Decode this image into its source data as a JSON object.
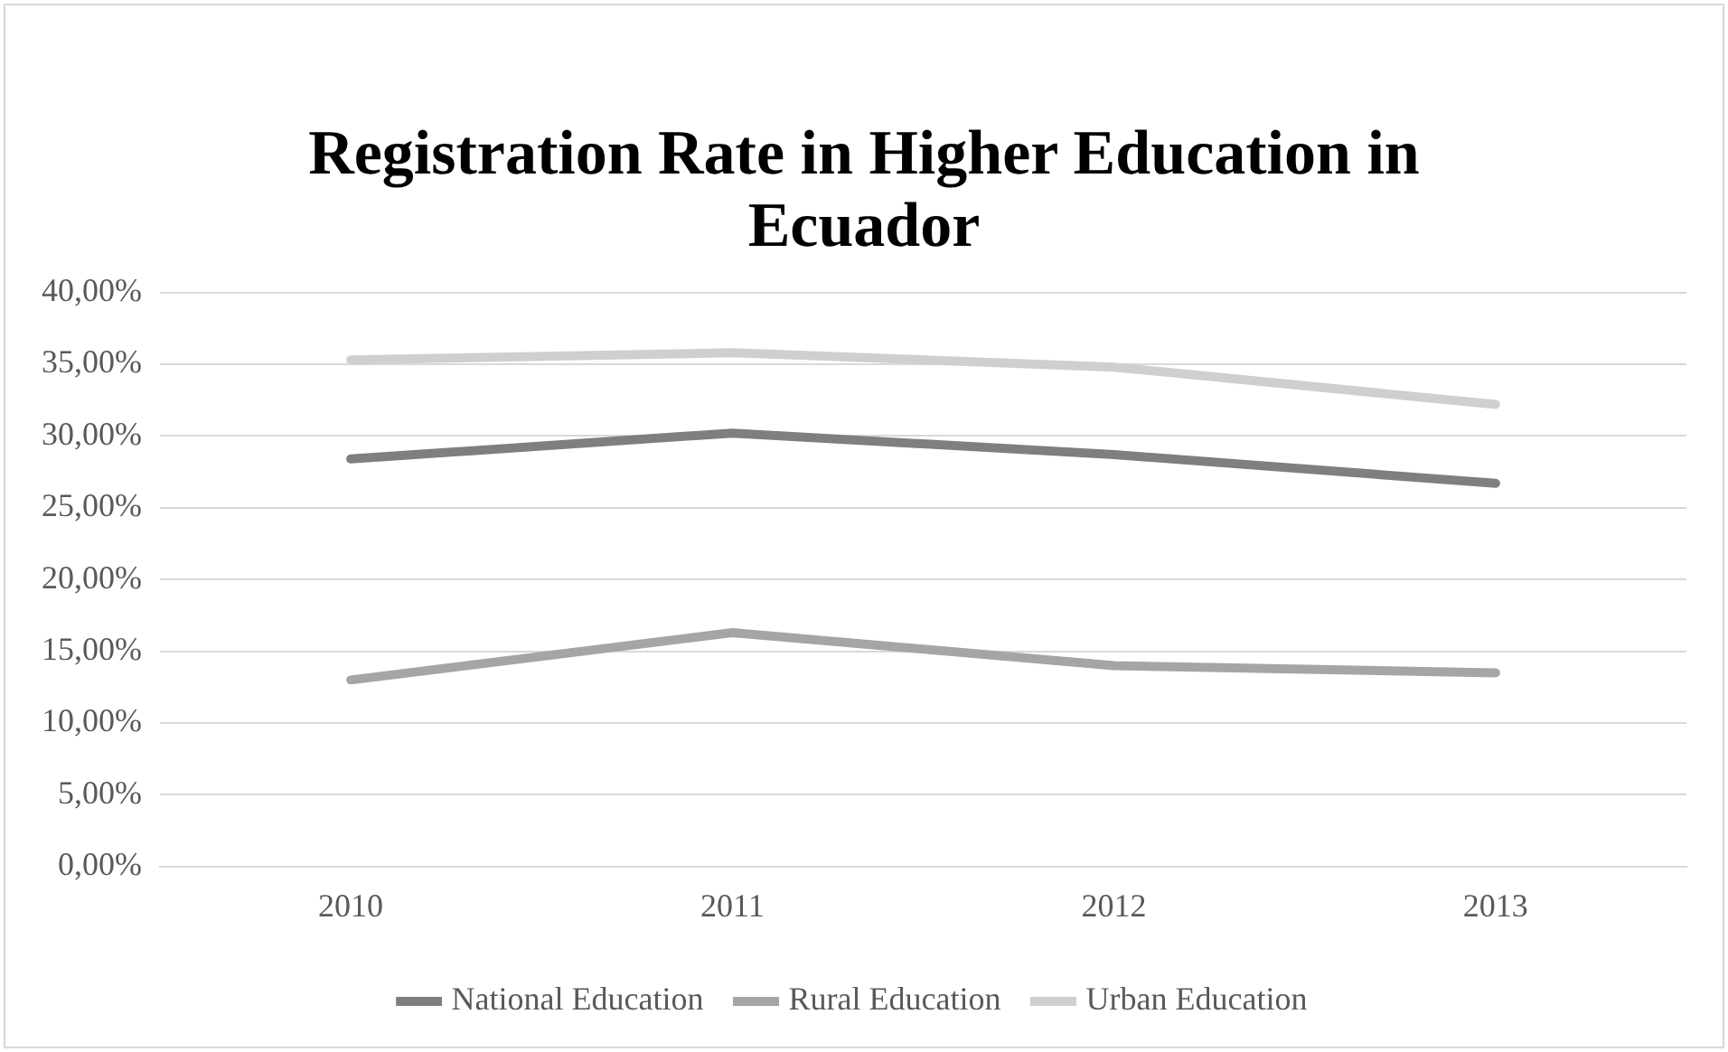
{
  "chart_data": {
    "type": "line",
    "title": "Registration Rate in Higher Education in Ecuador",
    "categories": [
      "2010",
      "2011",
      "2012",
      "2013"
    ],
    "series": [
      {
        "name": "National Education",
        "color": "#7f7f7f",
        "values": [
          28.4,
          30.2,
          28.7,
          26.7
        ]
      },
      {
        "name": "Rural Education",
        "color": "#a5a5a5",
        "values": [
          13.0,
          16.3,
          14.0,
          13.5
        ]
      },
      {
        "name": "Urban Education",
        "color": "#cfcfcf",
        "values": [
          35.3,
          35.8,
          34.8,
          32.2
        ]
      }
    ],
    "ylim": [
      0,
      40
    ],
    "yticks": [
      {
        "value": 0,
        "label": "0,00%"
      },
      {
        "value": 5,
        "label": "5,00%"
      },
      {
        "value": 10,
        "label": "10,00%"
      },
      {
        "value": 15,
        "label": "15,00%"
      },
      {
        "value": 20,
        "label": "20,00%"
      },
      {
        "value": 25,
        "label": "25,00%"
      },
      {
        "value": 30,
        "label": "30,00%"
      },
      {
        "value": 35,
        "label": "35,00%"
      },
      {
        "value": 40,
        "label": "40,00%"
      }
    ],
    "grid": "y",
    "legend": "bottom",
    "marker": "none",
    "line_style": "solid"
  }
}
